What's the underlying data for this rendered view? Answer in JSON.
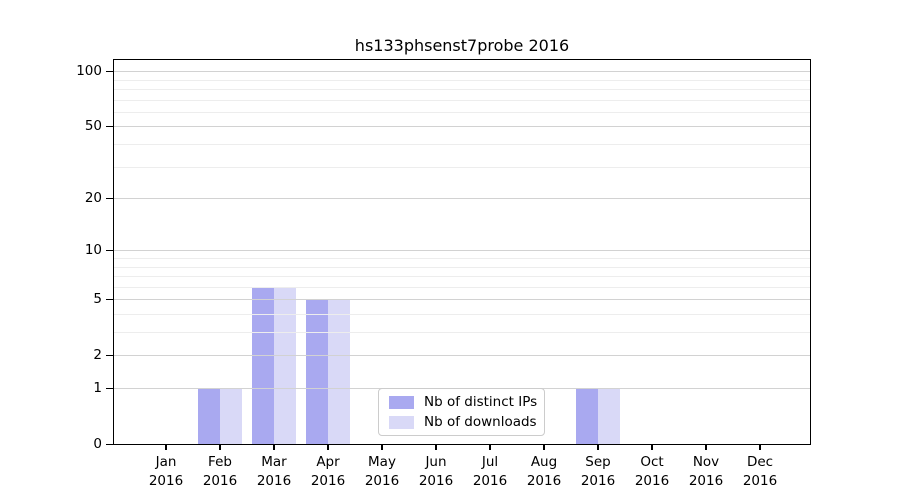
{
  "title": "hs133phsenst7probe 2016",
  "chart_data": {
    "type": "bar",
    "title": "hs133phsenst7probe 2016",
    "x_months": [
      "Jan",
      "Feb",
      "Mar",
      "Apr",
      "May",
      "Jun",
      "Jul",
      "Aug",
      "Sep",
      "Oct",
      "Nov",
      "Dec"
    ],
    "x_year": "2016",
    "series": [
      {
        "name": "Nb of distinct IPs",
        "color": "#a9a9f0",
        "values": [
          0,
          1,
          6,
          5,
          0,
          0,
          0,
          0,
          1,
          0,
          0,
          0
        ]
      },
      {
        "name": "Nb of downloads",
        "color": "#d9d9f7",
        "values": [
          0,
          1,
          6,
          5,
          0,
          0,
          0,
          0,
          1,
          0,
          0,
          0
        ]
      }
    ],
    "y_scale": "log1p",
    "y_major_ticks": [
      0,
      1,
      2,
      5,
      10,
      20,
      50,
      100
    ],
    "y_minor_gridlines": [
      3,
      4,
      6,
      7,
      8,
      9,
      30,
      40,
      60,
      70,
      80,
      90
    ],
    "ylim": [
      0,
      113
    ],
    "grid": true,
    "legend_position": "lower-center",
    "colors": {
      "major_grid": "#d2d2d2",
      "minor_grid": "#ededed",
      "spine": "#000000",
      "background": "#ffffff"
    }
  }
}
